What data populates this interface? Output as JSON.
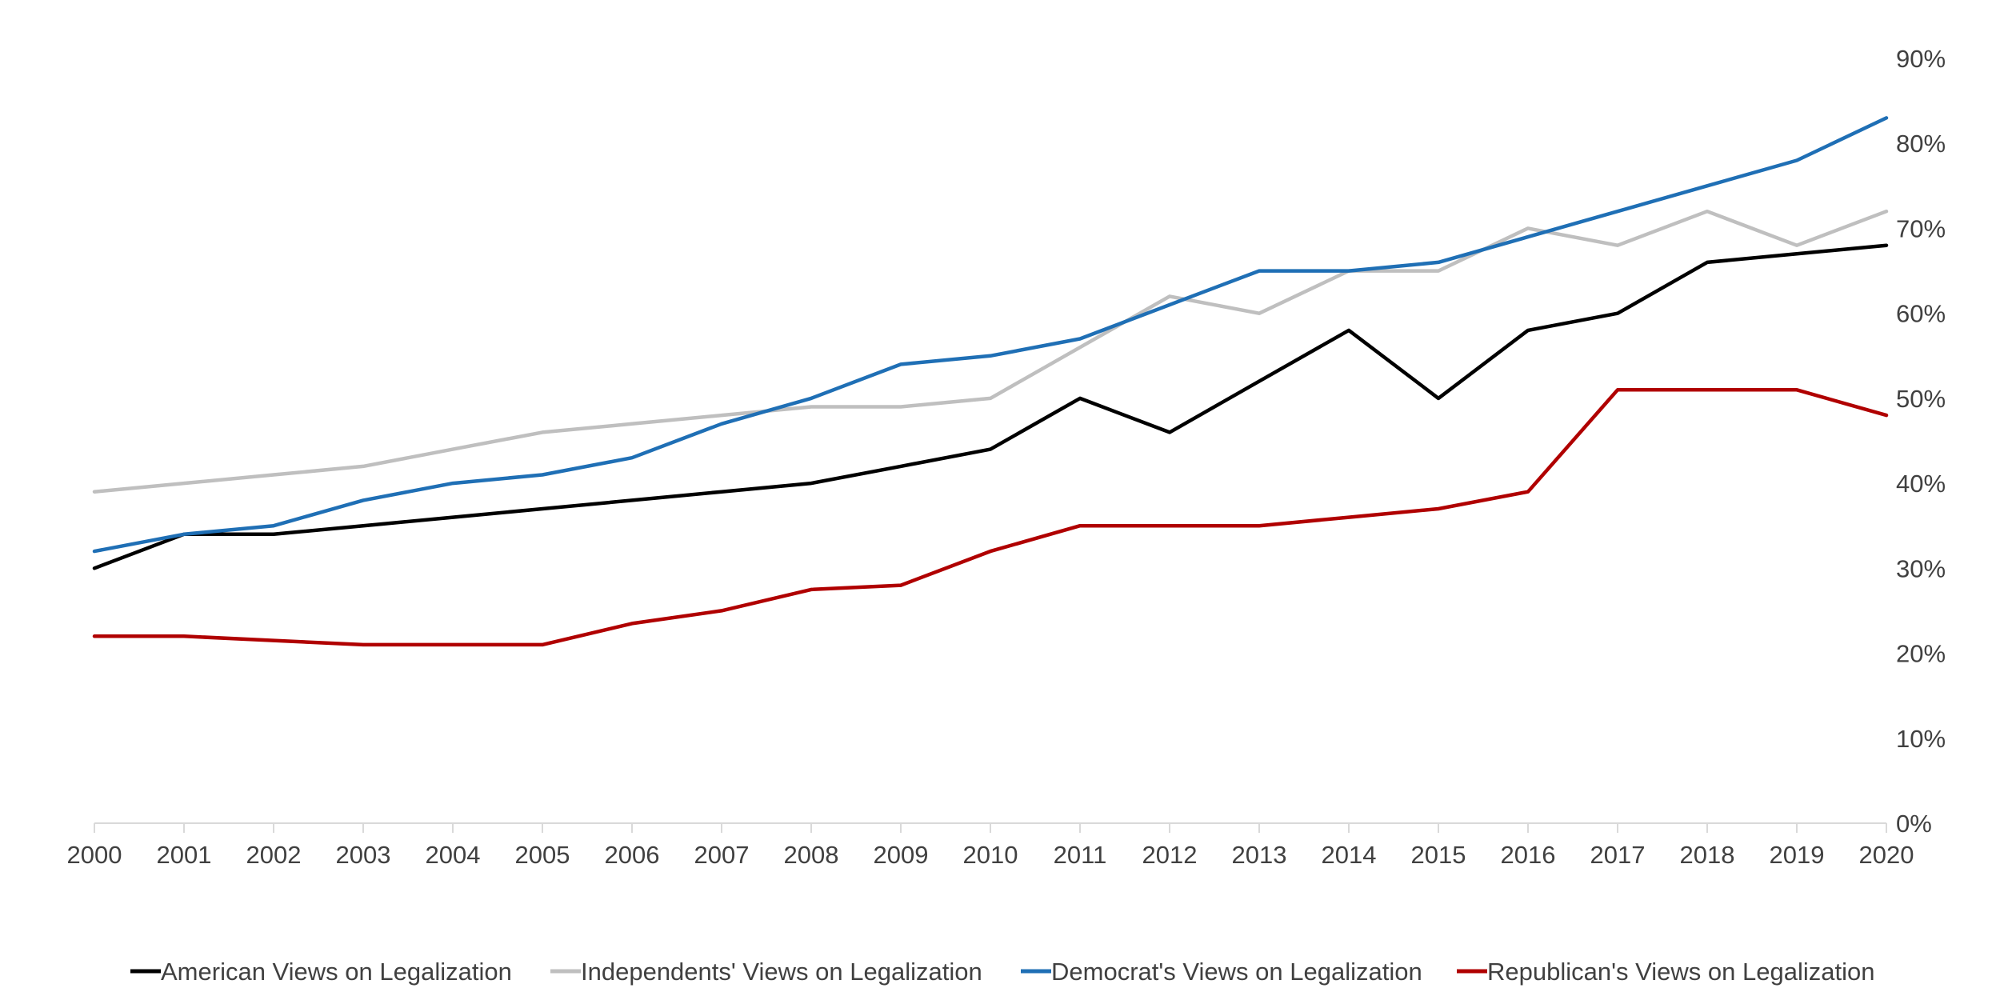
{
  "chart_data": {
    "type": "line",
    "title": "",
    "xlabel": "",
    "ylabel": "",
    "x": [
      "2000",
      "2001",
      "2002",
      "2003",
      "2004",
      "2005",
      "2006",
      "2007",
      "2008",
      "2009",
      "2010",
      "2011",
      "2012",
      "2013",
      "2014",
      "2015",
      "2016",
      "2017",
      "2018",
      "2019",
      "2020"
    ],
    "y_ticks": [
      "0%",
      "10%",
      "20%",
      "30%",
      "40%",
      "50%",
      "60%",
      "70%",
      "80%",
      "90%"
    ],
    "ylim": [
      0,
      90
    ],
    "y_axis_position": "right",
    "grid": false,
    "legend_position": "bottom",
    "series": [
      {
        "name": "American Views on Legalization",
        "color": "#000000",
        "values": [
          30,
          34,
          34,
          35,
          36,
          37,
          38,
          39,
          40,
          42,
          44,
          50,
          46,
          52,
          58,
          50,
          58,
          60,
          66,
          67,
          68
        ]
      },
      {
        "name": "Independents' Views on Legalization",
        "color": "#BFBFBF",
        "values": [
          39,
          40,
          41,
          42,
          44,
          46,
          47,
          48,
          49,
          49,
          50,
          56,
          62,
          60,
          65,
          65,
          70,
          68,
          72,
          68,
          72
        ]
      },
      {
        "name": "Democrat's Views on Legalization",
        "color": "#1F6FB5",
        "values": [
          32,
          34,
          35,
          38,
          40,
          41,
          43,
          47,
          50,
          54,
          55,
          57,
          61,
          65,
          65,
          66,
          69,
          72,
          75,
          78,
          83
        ]
      },
      {
        "name": "Republican's Views on Legalization",
        "color": "#B00000",
        "values": [
          22,
          22,
          21.5,
          21,
          21,
          21,
          23.5,
          25,
          27.5,
          28,
          32,
          35,
          35,
          35,
          36,
          37,
          39,
          51,
          51,
          51,
          48
        ]
      }
    ]
  }
}
